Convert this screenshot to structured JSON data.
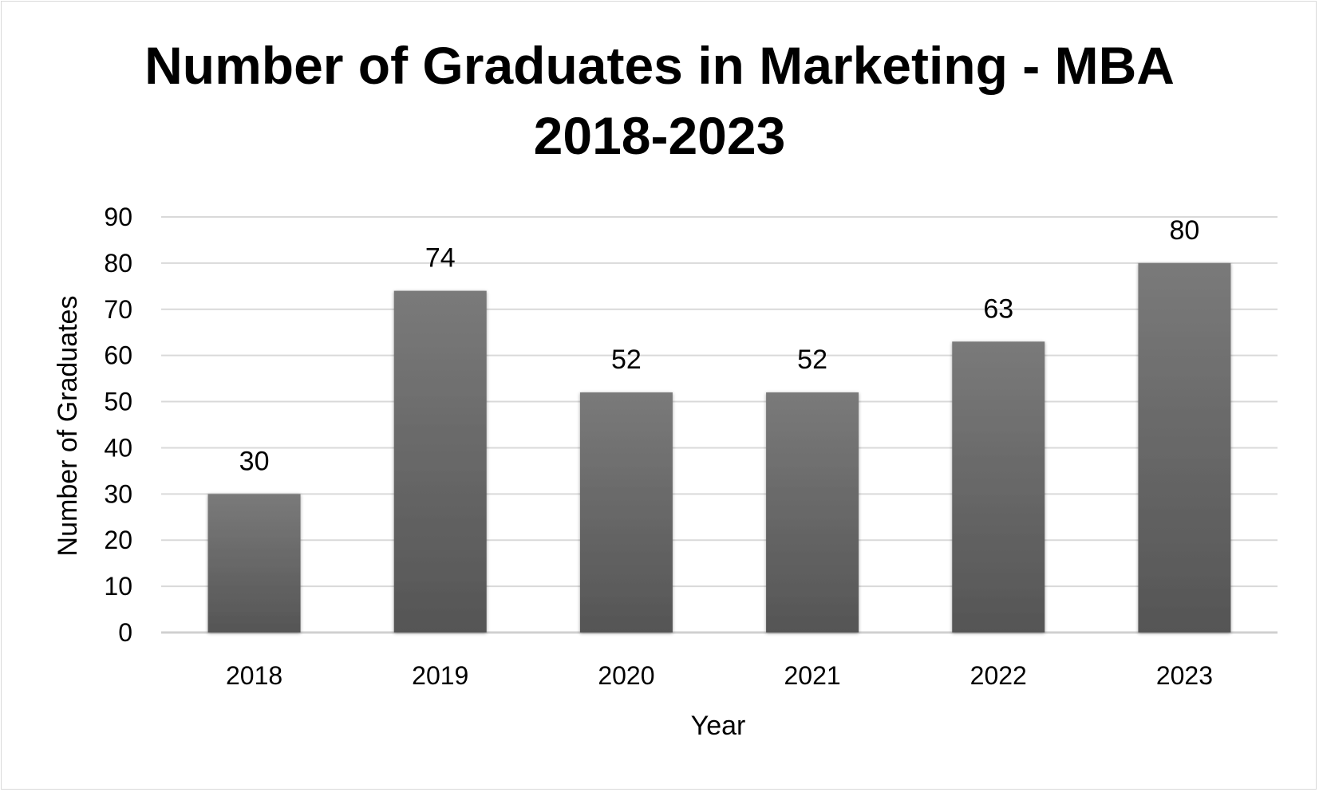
{
  "chart_data": {
    "type": "bar",
    "title_lines": [
      "Number of Graduates in Marketing - MBA",
      "2018-2023"
    ],
    "xlabel": "Year",
    "ylabel": "Number of Graduates",
    "categories": [
      "2018",
      "2019",
      "2020",
      "2021",
      "2022",
      "2023"
    ],
    "values": [
      30,
      74,
      52,
      52,
      63,
      80
    ],
    "ylim": [
      0,
      90
    ],
    "yticks": [
      0,
      10,
      20,
      30,
      40,
      50,
      60,
      70,
      80,
      90
    ],
    "grid": true,
    "legend": "none",
    "data_labels": true,
    "bar_color": "#5f5f5f"
  }
}
